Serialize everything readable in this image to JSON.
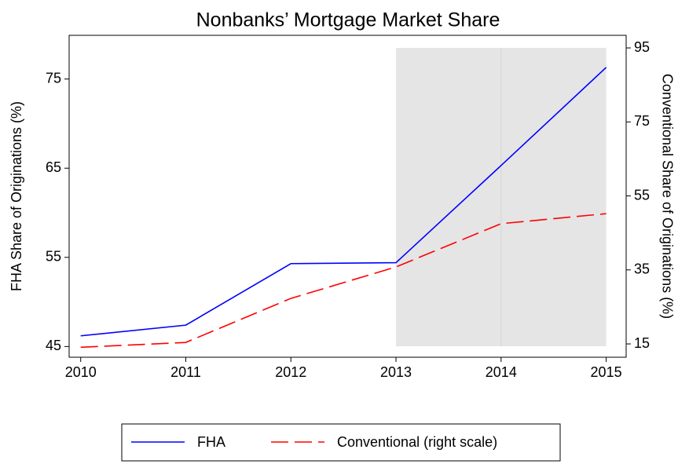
{
  "chart_data": {
    "type": "line",
    "title": "Nonbanks’ Mortgage Market Share",
    "ylabel": "FHA Share of Originations (%)",
    "y2label": "Conventional Share of Originations (%)",
    "x": [
      2010,
      2011,
      2012,
      2013,
      2014,
      2015
    ],
    "xlim": [
      2009.89,
      2015.19
    ],
    "xticks": [
      2010,
      2011,
      2012,
      2013,
      2014,
      2015
    ],
    "ylim": [
      43.8,
      79.9
    ],
    "yticks": [
      45,
      55,
      65,
      75
    ],
    "y2lim": [
      11.4,
      98.4
    ],
    "y2ticks": [
      15,
      35,
      55,
      75,
      95
    ],
    "shade": [
      2013,
      2015
    ],
    "series": [
      {
        "name": "FHA",
        "color": "#0000ff",
        "values": [
          46.2,
          47.4,
          54.3,
          54.4,
          65.3,
          76.3
        ]
      },
      {
        "name": "Conventional (right scale)",
        "color": "#ff0000",
        "axis": "y2",
        "dash": true,
        "values": [
          14.1,
          15.4,
          27.3,
          35.8,
          47.5,
          50.2
        ]
      }
    ]
  }
}
